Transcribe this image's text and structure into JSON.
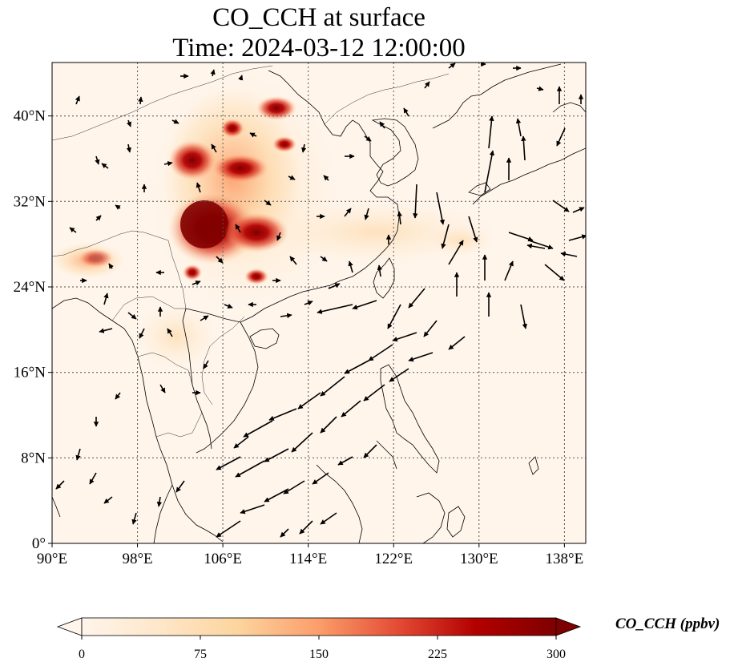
{
  "map": {
    "title_line1": "CO_CCH at surface",
    "title_line2": "Time: 2024-03-12 12:00:00",
    "extent": {
      "lon_min": 90,
      "lon_max": 140,
      "lat_min": 0,
      "lat_max": 45
    },
    "lon_ticks": [
      {
        "value": 90,
        "label": "90°E"
      },
      {
        "value": 98,
        "label": "98°E"
      },
      {
        "value": 106,
        "label": "106°E"
      },
      {
        "value": 114,
        "label": "114°E"
      },
      {
        "value": 122,
        "label": "122°E"
      },
      {
        "value": 130,
        "label": "130°E"
      },
      {
        "value": 138,
        "label": "138°E"
      }
    ],
    "lat_ticks": [
      {
        "value": 0,
        "label": "0°"
      },
      {
        "value": 8,
        "label": "8°N"
      },
      {
        "value": 16,
        "label": "16°N"
      },
      {
        "value": 24,
        "label": "24°N"
      },
      {
        "value": 32,
        "label": "32°N"
      },
      {
        "value": 40,
        "label": "40°N"
      }
    ],
    "gridlines": true,
    "background_color": "#fff5eb",
    "coastline_color": "#000000"
  },
  "colorbar": {
    "label": "CO_CCH (ppbv)",
    "colormap": "OrRd",
    "min": 0,
    "max": 300,
    "extend": "both",
    "ticks": [
      {
        "value": 0,
        "label": "0"
      },
      {
        "value": 75,
        "label": "75"
      },
      {
        "value": 150,
        "label": "150"
      },
      {
        "value": 225,
        "label": "225"
      },
      {
        "value": 300,
        "label": "300"
      }
    ],
    "colors": [
      "#fff5eb",
      "#fdd49e",
      "#fdbb84",
      "#fc8d59",
      "#e34a33",
      "#b30000",
      "#7f0000"
    ]
  }
}
